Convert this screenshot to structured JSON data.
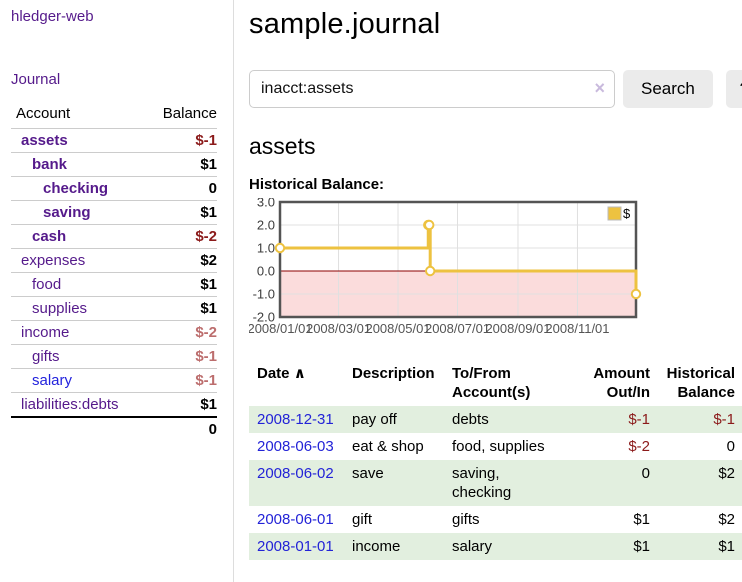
{
  "sidebar": {
    "brand": "hledger-web",
    "journal_link": "Journal",
    "accounts_table": {
      "col_account": "Account",
      "col_balance": "Balance",
      "rows": [
        {
          "name": "assets",
          "indent": 1,
          "bold": true,
          "balance": "$-1",
          "neg": "strong",
          "link_color": "purple"
        },
        {
          "name": "bank",
          "indent": 2,
          "bold": true,
          "balance": "$1",
          "neg": "none",
          "link_color": "purple"
        },
        {
          "name": "checking",
          "indent": 3,
          "bold": true,
          "balance": "0",
          "neg": "none",
          "link_color": "purple"
        },
        {
          "name": "saving",
          "indent": 3,
          "bold": true,
          "balance": "$1",
          "neg": "none",
          "link_color": "purple"
        },
        {
          "name": "cash",
          "indent": 2,
          "bold": true,
          "balance": "$-2",
          "neg": "strong",
          "link_color": "purple"
        },
        {
          "name": "expenses",
          "indent": 1,
          "bold": false,
          "balance": "$2",
          "neg": "none",
          "link_color": "purple"
        },
        {
          "name": "food",
          "indent": 2,
          "bold": false,
          "balance": "$1",
          "neg": "none",
          "link_color": "purple"
        },
        {
          "name": "supplies",
          "indent": 2,
          "bold": false,
          "balance": "$1",
          "neg": "none",
          "link_color": "purple"
        },
        {
          "name": "income",
          "indent": 1,
          "bold": false,
          "balance": "$-2",
          "neg": "soft",
          "link_color": "purple"
        },
        {
          "name": "gifts",
          "indent": 2,
          "bold": false,
          "balance": "$-1",
          "neg": "soft",
          "link_color": "purple"
        },
        {
          "name": "salary",
          "indent": 2,
          "bold": false,
          "balance": "$-1",
          "neg": "soft",
          "link_color": "blue"
        },
        {
          "name": "liabilities:debts",
          "indent": 1,
          "bold": false,
          "balance": "$1",
          "neg": "none",
          "link_color": "purple"
        }
      ],
      "total": "0"
    }
  },
  "header": {
    "title": "sample.journal"
  },
  "search": {
    "value": "inacct:assets",
    "clear_icon": "×",
    "button_label": "Search",
    "help_label": "?"
  },
  "main": {
    "account_heading": "assets",
    "chart_label": "Historical Balance:"
  },
  "chart_data": {
    "type": "line",
    "step": true,
    "title": "Historical Balance of assets",
    "series": [
      {
        "name": "$",
        "color": "#edc240",
        "points": [
          [
            "2008-01-01",
            1
          ],
          [
            "2008-06-01",
            2
          ],
          [
            "2008-06-02",
            2
          ],
          [
            "2008-06-03",
            0
          ],
          [
            "2008-12-31",
            -1
          ]
        ]
      }
    ],
    "x_range": [
      "2008-01-01",
      "2008-12-31"
    ],
    "ylim": [
      -2,
      3
    ],
    "y_ticks": [
      "3.0",
      "2.0",
      "1.0",
      "0.0",
      "-1.0",
      "-2.0"
    ],
    "x_ticks": [
      "2008/01/01",
      "2008/03/01",
      "2008/05/01",
      "2008/07/01",
      "2008/09/01",
      "2008/11/01"
    ],
    "grid": true,
    "legend_position": "top-right",
    "legend": {
      "label": "$",
      "swatch_color": "#edc240"
    },
    "colors": {
      "negative_region": "#fbdcdc",
      "zero_line": "#8b0000",
      "grid": "#e0e0e0",
      "border": "#545454",
      "tick_text": "#545454",
      "marker_fill": "#ffffff"
    }
  },
  "register_table": {
    "headers": {
      "date": "Date",
      "sort_asc_icon": "∧",
      "description": "Description",
      "accounts": "To/From Account(s)",
      "amount": "Amount Out/In",
      "balance": "Historical Balance"
    },
    "rows": [
      {
        "date": "2008-12-31",
        "description": "pay off",
        "accounts": "debts",
        "amount": "$-1",
        "amount_neg": true,
        "balance": "$-1",
        "balance_neg": true
      },
      {
        "date": "2008-06-03",
        "description": "eat & shop",
        "accounts": "food, supplies",
        "amount": "$-2",
        "amount_neg": true,
        "balance": "0",
        "balance_neg": false
      },
      {
        "date": "2008-06-02",
        "description": "save",
        "accounts": "saving,\ncheckin g",
        "amount": "0",
        "amount_neg": false,
        "balance": "$2",
        "balance_neg": false
      },
      {
        "date": "2008-06-01",
        "description": "gift",
        "accounts": "gifts",
        "amount": "$1",
        "amount_neg": false,
        "balance": "$2",
        "balance_neg": false
      },
      {
        "date": "2008-01-01",
        "description": "income",
        "accounts": "salary",
        "amount": "$1",
        "amount_neg": false,
        "balance": "$1",
        "balance_neg": false
      }
    ]
  },
  "colors": {
    "link_purple": "#551a8b",
    "link_blue": "#2323d7",
    "negative_strong": "#8b1a1a",
    "negative_soft": "#bc6d6d",
    "stripe_green": "#e2efdf",
    "button_bg": "#ebebeb"
  }
}
